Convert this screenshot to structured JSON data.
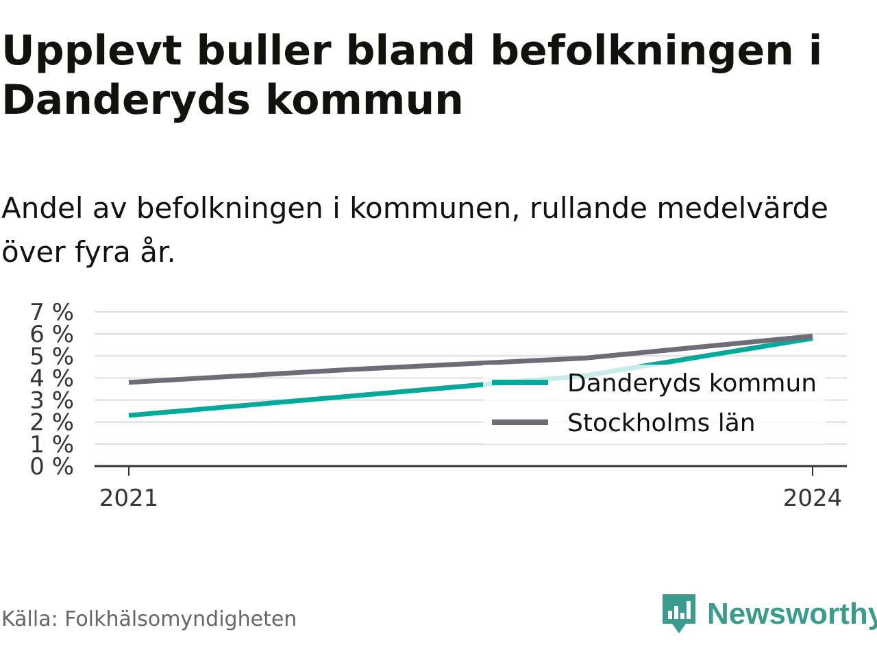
{
  "title": "Upplevt buller bland befolkningen i Danderyds kommun",
  "subtitle": "Andel av befolkningen i kommunen, rullande medelvärde över fyra år.",
  "source": "Källa: Folkhälsomyndigheten",
  "brand": {
    "name": "Newsworthy",
    "icon": "newsworthy-logo-icon",
    "color": "#3b9b8c"
  },
  "chart_data": {
    "type": "line",
    "x": [
      2021,
      2022,
      2023,
      2024
    ],
    "x_tick_labels": [
      "2021",
      "2024"
    ],
    "y_tick_labels": [
      "0 %",
      "1 %",
      "2 %",
      "3 %",
      "4 %",
      "5 %",
      "6 %",
      "7 %"
    ],
    "ylim": [
      0,
      7
    ],
    "grid": true,
    "legend_position": "right",
    "series": [
      {
        "name": "Danderyds kommun",
        "color": "#00a99a",
        "values": [
          2.3,
          3.2,
          4.1,
          5.8
        ]
      },
      {
        "name": "Stockholms län",
        "color": "#6e6d75",
        "values": [
          3.8,
          4.4,
          4.9,
          5.9
        ]
      }
    ]
  }
}
